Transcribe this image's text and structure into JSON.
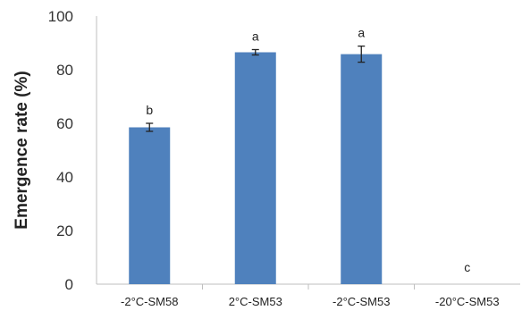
{
  "chart_data": {
    "type": "bar",
    "title": "",
    "xlabel": "",
    "ylabel": "Emergence rate (%)",
    "ylim": [
      0,
      100
    ],
    "yticks": [
      0,
      20,
      40,
      60,
      80,
      100
    ],
    "grid": false,
    "categories": [
      "-2°C-SM58",
      "2°C-SM53",
      "-2°C-SM53",
      "-20°C-SM53"
    ],
    "values": [
      58.5,
      86.5,
      85.8,
      0
    ],
    "errors": [
      1.5,
      1.0,
      3.0,
      0
    ],
    "significance_letters": [
      "b",
      "a",
      "a",
      "c"
    ],
    "bar_color": "#4F81BD",
    "axis_color": "#BFBFBF",
    "errorbar_color": "#222222"
  }
}
